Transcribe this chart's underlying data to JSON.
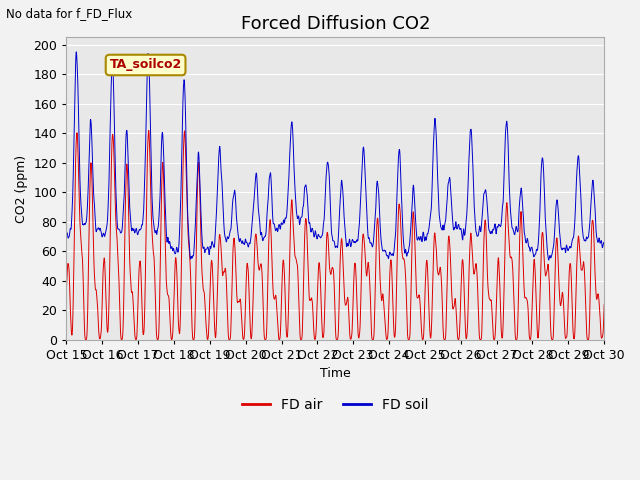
{
  "title": "Forced Diffusion CO2",
  "ylabel": "CO2 (ppm)",
  "xlabel": "Time",
  "no_data_text": "No data for f_FD_Flux",
  "legend_box_text": "TA_soilco2",
  "ylim": [
    0,
    205
  ],
  "yticks": [
    0,
    20,
    40,
    60,
    80,
    100,
    120,
    140,
    160,
    180,
    200
  ],
  "xtick_labels": [
    "Oct 15",
    "Oct 16",
    "Oct 17",
    "Oct 18",
    "Oct 19",
    "Oct 20",
    "Oct 21",
    "Oct 22",
    "Oct 23",
    "Oct 24",
    "Oct 25",
    "Oct 26",
    "Oct 27",
    "Oct 28",
    "Oct 29",
    "Oct 30"
  ],
  "line_red_label": "FD air",
  "line_blue_label": "FD soil",
  "line_red_color": "#dd0000",
  "line_blue_color": "#0000cc",
  "plot_bg_color": "#e8e8e8",
  "fig_bg_color": "#f2f2f2",
  "grid_color": "#ffffff",
  "legend_box_bg": "#ffffcc",
  "legend_box_edge": "#aa8800",
  "legend_box_text_color": "#aa0000",
  "title_fontsize": 13,
  "axis_label_fontsize": 9,
  "tick_fontsize": 9,
  "n_points": 2000,
  "days": 15
}
